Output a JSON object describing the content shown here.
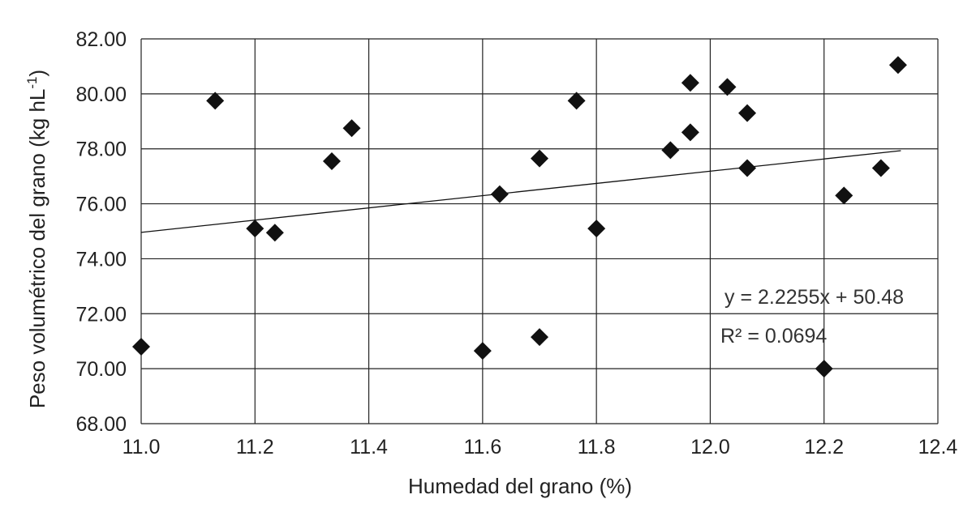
{
  "chart_data": {
    "type": "scatter",
    "title": "",
    "xlabel": "Humedad del grano (%)",
    "ylabel": "Peso volumétrico del grano (kg hL",
    "ylabel_sup": "-1",
    "ylabel_close": ")",
    "xlim": [
      11.0,
      12.4
    ],
    "ylim": [
      68.0,
      82.0
    ],
    "x_ticks": [
      "11.0",
      "11.2",
      "11.4",
      "11.6",
      "11.8",
      "12.0",
      "12.2",
      "12.4"
    ],
    "x_tick_values": [
      11.0,
      11.2,
      11.4,
      11.6,
      11.8,
      12.0,
      12.2,
      12.4
    ],
    "y_ticks": [
      "68.00",
      "70.00",
      "72.00",
      "74.00",
      "76.00",
      "78.00",
      "80.00",
      "82.00"
    ],
    "y_tick_values": [
      68,
      70,
      72,
      74,
      76,
      78,
      80,
      82
    ],
    "grid": true,
    "marker": "diamond",
    "marker_color": "#111111",
    "points": [
      {
        "x": 11.0,
        "y": 70.8
      },
      {
        "x": 11.13,
        "y": 79.75
      },
      {
        "x": 11.2,
        "y": 75.1
      },
      {
        "x": 11.235,
        "y": 74.95
      },
      {
        "x": 11.335,
        "y": 77.55
      },
      {
        "x": 11.37,
        "y": 78.75
      },
      {
        "x": 11.6,
        "y": 70.65
      },
      {
        "x": 11.63,
        "y": 76.35
      },
      {
        "x": 11.7,
        "y": 77.65
      },
      {
        "x": 11.7,
        "y": 71.15
      },
      {
        "x": 11.765,
        "y": 79.75
      },
      {
        "x": 11.8,
        "y": 75.1
      },
      {
        "x": 11.93,
        "y": 77.95
      },
      {
        "x": 11.965,
        "y": 80.4
      },
      {
        "x": 11.965,
        "y": 78.6
      },
      {
        "x": 12.03,
        "y": 80.25
      },
      {
        "x": 12.065,
        "y": 79.3
      },
      {
        "x": 12.065,
        "y": 77.3
      },
      {
        "x": 12.2,
        "y": 70.0
      },
      {
        "x": 12.235,
        "y": 76.3
      },
      {
        "x": 12.3,
        "y": 77.3
      },
      {
        "x": 12.33,
        "y": 81.05
      }
    ],
    "trendline": {
      "type": "linear",
      "slope": 2.2255,
      "intercept": 50.48,
      "x_range": [
        11.0,
        12.335
      ],
      "equation": "y = 2.2255x + 50.48",
      "r_squared": "R² = 0.0694"
    }
  }
}
